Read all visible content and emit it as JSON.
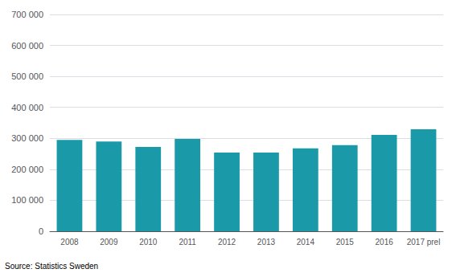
{
  "chart_data": {
    "type": "bar",
    "categories": [
      "2008",
      "2009",
      "2010",
      "2011",
      "2012",
      "2013",
      "2014",
      "2015",
      "2016",
      "2017 prel"
    ],
    "values": [
      295000,
      290000,
      272000,
      298000,
      254000,
      254000,
      268000,
      278000,
      311000,
      329000
    ],
    "color": "#1a9aa8",
    "ylim": [
      0,
      700000
    ],
    "yticks": [
      0,
      {
        "value": 100000,
        "label": "100 000"
      },
      {
        "value": 200000,
        "label": "200 000"
      },
      {
        "value": 300000,
        "label": "300 000"
      },
      {
        "value": 400000,
        "label": "400 000"
      },
      {
        "value": 500000,
        "label": "500 000"
      },
      {
        "value": 600000,
        "label": "600 000"
      },
      {
        "value": 700000,
        "label": "700 000"
      }
    ],
    "grid": true,
    "annotations": [
      "Source: Statistics Sweden"
    ]
  }
}
